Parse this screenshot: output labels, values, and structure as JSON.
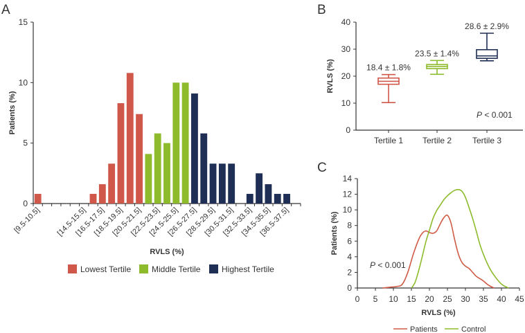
{
  "colors": {
    "axis": "#333333",
    "lowest": "#d0584a",
    "middle": "#8dbb2b",
    "highest": "#1f2e55",
    "patients": "#cf5a45",
    "control": "#8dbb2b"
  },
  "panels": {
    "a": "A",
    "b": "B",
    "c": "C"
  },
  "chart_data": [
    {
      "id": "A",
      "type": "bar",
      "title": "",
      "xlabel": "RVLS (%)",
      "ylabel": "Patients (%)",
      "ylim": [
        0,
        15
      ],
      "yticks": [
        "0",
        "5",
        "10",
        "15"
      ],
      "xtick_labels": [
        "[9.5-10.5]",
        "[14.5-15.5]",
        "[16.5-17.5]",
        "[18.5-19.5]",
        "[20.5-21.5]",
        "[22.5-23.5]",
        "[24.5-25.5]",
        "[26.5-27.5]",
        "[28.5-29.5]",
        "[30.5-31.5]",
        "[32.5-33.5]",
        "[34.5-35.5]",
        "[36.5-37.5]"
      ],
      "bin_start": 9.5,
      "bin_end": 38.5,
      "bars": [
        {
          "bin": 10,
          "value": 0.8,
          "group": "lowest"
        },
        {
          "bin": 16,
          "value": 0.8,
          "group": "lowest"
        },
        {
          "bin": 17,
          "value": 1.6,
          "group": "lowest"
        },
        {
          "bin": 18,
          "value": 3.3,
          "group": "lowest"
        },
        {
          "bin": 19,
          "value": 8.3,
          "group": "lowest"
        },
        {
          "bin": 20,
          "value": 10.8,
          "group": "lowest"
        },
        {
          "bin": 21,
          "value": 7.4,
          "group": "lowest"
        },
        {
          "bin": 22,
          "value": 4.1,
          "group": "middle"
        },
        {
          "bin": 23,
          "value": 5.8,
          "group": "middle"
        },
        {
          "bin": 24,
          "value": 5.0,
          "group": "middle"
        },
        {
          "bin": 25,
          "value": 10.0,
          "group": "middle"
        },
        {
          "bin": 26,
          "value": 10.0,
          "group": "middle"
        },
        {
          "bin": 27,
          "value": 9.1,
          "group": "highest"
        },
        {
          "bin": 28,
          "value": 5.8,
          "group": "highest"
        },
        {
          "bin": 29,
          "value": 3.3,
          "group": "highest"
        },
        {
          "bin": 30,
          "value": 3.3,
          "group": "highest"
        },
        {
          "bin": 31,
          "value": 3.3,
          "group": "highest"
        },
        {
          "bin": 33,
          "value": 0.8,
          "group": "highest"
        },
        {
          "bin": 34,
          "value": 2.5,
          "group": "highest"
        },
        {
          "bin": 35,
          "value": 1.6,
          "group": "highest"
        },
        {
          "bin": 36,
          "value": 0.8,
          "group": "highest"
        },
        {
          "bin": 37,
          "value": 0.8,
          "group": "highest"
        }
      ],
      "legend": [
        {
          "key": "lowest",
          "label": "Lowest Tertile"
        },
        {
          "key": "middle",
          "label": "Middle Tertile"
        },
        {
          "key": "highest",
          "label": "Highest Tertile"
        }
      ]
    },
    {
      "id": "B",
      "type": "box",
      "xlabel": "",
      "ylabel": "RVLS (%)",
      "ylim": [
        0,
        40
      ],
      "yticks": [
        "0",
        "10",
        "20",
        "30",
        "40"
      ],
      "boxes": [
        {
          "label": "Tertile 1",
          "min": 10.2,
          "q1": 17.0,
          "median": 18.1,
          "q3": 19.3,
          "max": 20.6,
          "annotation": "18.4 ± 1.8%",
          "color_key": "lowest"
        },
        {
          "label": "Tertile 2",
          "min": 20.7,
          "q1": 22.8,
          "median": 23.6,
          "q3": 24.3,
          "max": 25.8,
          "annotation": "23.5 ± 1.4%",
          "color_key": "middle"
        },
        {
          "label": "Tertile 3",
          "min": 25.7,
          "q1": 26.6,
          "median": 27.5,
          "q3": 29.8,
          "max": 35.9,
          "annotation": "28.6 ± 2.9%",
          "color_key": "highest"
        }
      ],
      "pvalue": {
        "prefix": "P",
        "text": " < 0.001"
      }
    },
    {
      "id": "C",
      "type": "line",
      "xlabel": "RVLS (%)",
      "ylabel": "Patients (%)",
      "xlim": [
        0,
        45
      ],
      "ylim": [
        0,
        14
      ],
      "xticks": [
        "0",
        "5",
        "10",
        "15",
        "20",
        "25",
        "30",
        "35",
        "40",
        "45"
      ],
      "yticks": [
        "0",
        "2",
        "4",
        "6",
        "8",
        "10",
        "12",
        "14"
      ],
      "series": [
        {
          "name": "Patients",
          "color_key": "patients",
          "x": [
            7,
            9,
            11,
            12.5,
            14,
            15.5,
            17,
            18,
            19,
            20,
            21,
            22,
            23,
            24,
            25,
            26,
            27,
            28,
            29,
            30,
            31,
            32,
            33,
            34,
            35,
            36,
            37,
            38
          ],
          "y": [
            0,
            0.1,
            0.2,
            0.5,
            2.0,
            4.3,
            6.2,
            7.0,
            7.3,
            7.1,
            7.0,
            7.3,
            8.2,
            9.0,
            9.3,
            8.3,
            6.2,
            4.4,
            3.3,
            2.8,
            2.5,
            2.0,
            1.5,
            1.2,
            0.9,
            0.5,
            0.2,
            0
          ]
        },
        {
          "name": "Control",
          "color_key": "control",
          "x": [
            15,
            16,
            17,
            18,
            19,
            20,
            21,
            22,
            23,
            24,
            25,
            26,
            27,
            28,
            29,
            30,
            31,
            32,
            33,
            34,
            35,
            36,
            37,
            38,
            39,
            40,
            41,
            42
          ],
          "y": [
            0,
            0.7,
            2.2,
            4.0,
            5.9,
            7.4,
            8.9,
            9.9,
            10.6,
            11.3,
            11.8,
            12.2,
            12.5,
            12.6,
            12.4,
            11.6,
            10.3,
            8.9,
            7.3,
            5.6,
            4.3,
            3.2,
            2.3,
            1.6,
            1.0,
            0.5,
            0.2,
            0
          ]
        }
      ],
      "pvalue": {
        "prefix": "P",
        "text": " < 0.001"
      }
    }
  ]
}
